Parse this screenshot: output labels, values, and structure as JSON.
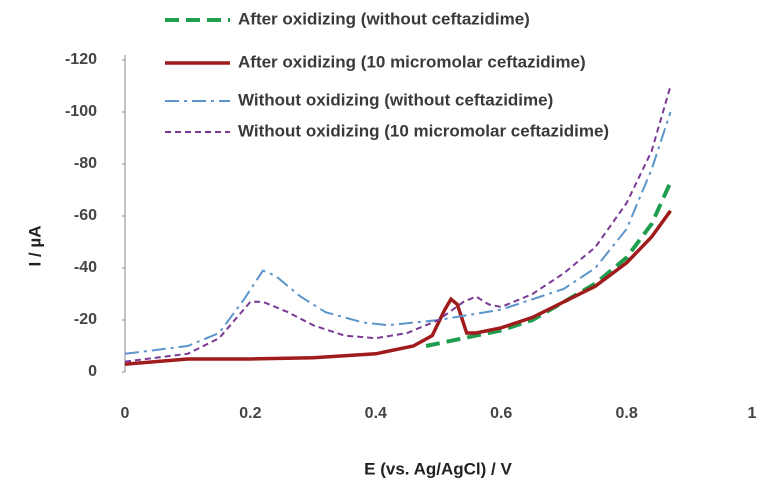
{
  "chart_data": {
    "type": "line",
    "xlabel": "E (vs. Ag/AgCl) / V",
    "ylabel": "I / µA",
    "xlim": [
      0,
      1
    ],
    "xticks": [
      0,
      0.2,
      0.4,
      0.6,
      0.8,
      1
    ],
    "ylim": [
      0,
      -120
    ],
    "yticks": [
      0,
      -20,
      -40,
      -60,
      -80,
      -100,
      -120
    ],
    "series": [
      {
        "name": "After oxidizing (without ceftazidime)",
        "color": "#1f9e4f",
        "style": "dashed",
        "x": [
          0.48,
          0.52,
          0.56,
          0.6,
          0.65,
          0.7,
          0.75,
          0.8,
          0.84,
          0.87
        ],
        "values": [
          -10,
          -12,
          -14,
          -16,
          -20,
          -27,
          -34,
          -44,
          -57,
          -73
        ]
      },
      {
        "name": "After oxidizing (10 micromolar ceftazidime)",
        "color": "#a01b1b",
        "style": "solid",
        "x": [
          0,
          0.1,
          0.2,
          0.3,
          0.4,
          0.46,
          0.49,
          0.51,
          0.52,
          0.53,
          0.545,
          0.56,
          0.6,
          0.65,
          0.7,
          0.75,
          0.8,
          0.84,
          0.87
        ],
        "values": [
          -3,
          -5,
          -5,
          -5.5,
          -7,
          -10,
          -14,
          -24,
          -28,
          -26,
          -15,
          -15,
          -17,
          -21,
          -27,
          -33,
          -42,
          -52,
          -62
        ]
      },
      {
        "name": "Without oxidizing (without ceftazidime)",
        "color": "#5b95c9",
        "style": "dashdot",
        "x": [
          0,
          0.1,
          0.15,
          0.19,
          0.22,
          0.24,
          0.28,
          0.32,
          0.38,
          0.42,
          0.5,
          0.6,
          0.7,
          0.75,
          0.8,
          0.84,
          0.87
        ],
        "values": [
          -7,
          -10,
          -15,
          -28,
          -39,
          -37,
          -29,
          -23,
          -19,
          -18,
          -20,
          -24,
          -32,
          -40,
          -55,
          -78,
          -100
        ]
      },
      {
        "name": "Without oxidizing (10 micromolar ceftazidime)",
        "color": "#7a3a95",
        "style": "dotted",
        "x": [
          0,
          0.1,
          0.15,
          0.2,
          0.22,
          0.26,
          0.3,
          0.35,
          0.4,
          0.45,
          0.5,
          0.54,
          0.56,
          0.58,
          0.6,
          0.65,
          0.7,
          0.75,
          0.8,
          0.84,
          0.87
        ],
        "values": [
          -4,
          -7,
          -13,
          -27,
          -27,
          -23,
          -18,
          -14,
          -13,
          -15,
          -20,
          -27,
          -29,
          -26,
          -25,
          -30,
          -38,
          -48,
          -65,
          -85,
          -110
        ]
      }
    ]
  }
}
